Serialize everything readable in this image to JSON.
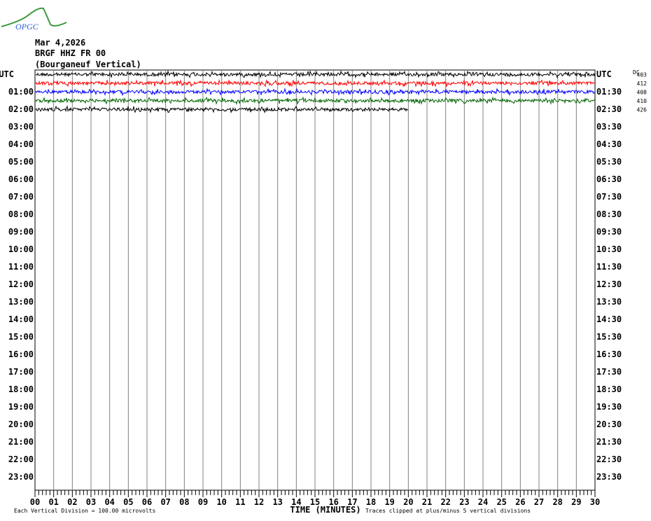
{
  "logo": {
    "text": "OPGC"
  },
  "header": {
    "date": "Mar 4,2026",
    "station": "BRGF HHZ FR 00",
    "location": "(Bourganeuf Vertical)"
  },
  "footer": {
    "scale": "Each Vertical Division =  100.00 microvolts",
    "clip": "Traces clipped at plus/minus 5 vertical divisions"
  },
  "chart_data": {
    "type": "line",
    "xlabel": "TIME (MINUTES)",
    "x_ticks": [
      "00",
      "01",
      "02",
      "03",
      "04",
      "05",
      "06",
      "07",
      "08",
      "09",
      "10",
      "11",
      "12",
      "13",
      "14",
      "15",
      "16",
      "17",
      "18",
      "19",
      "20",
      "21",
      "22",
      "23",
      "24",
      "25",
      "26",
      "27",
      "28",
      "29",
      "30"
    ],
    "xlim": [
      0,
      30
    ],
    "left_labels": [
      "UTC",
      "01:00",
      "02:00",
      "03:00",
      "04:00",
      "05:00",
      "06:00",
      "07:00",
      "08:00",
      "09:00",
      "10:00",
      "11:00",
      "12:00",
      "13:00",
      "14:00",
      "15:00",
      "16:00",
      "17:00",
      "18:00",
      "19:00",
      "20:00",
      "21:00",
      "22:00",
      "23:00"
    ],
    "right_labels": [
      "UTC",
      "01:30",
      "02:30",
      "03:30",
      "04:30",
      "05:30",
      "06:30",
      "07:30",
      "08:30",
      "09:30",
      "10:30",
      "11:30",
      "12:30",
      "13:30",
      "14:30",
      "15:30",
      "16:30",
      "17:30",
      "18:30",
      "19:30",
      "20:30",
      "21:30",
      "22:30",
      "23:30"
    ],
    "dc_label": "DC",
    "rows_total": 48,
    "colors": [
      "#000000",
      "#ff0000",
      "#0000ff",
      "#006400"
    ],
    "traces": [
      {
        "row": 0,
        "color": "#000000",
        "dc": "403",
        "end_minute": 30
      },
      {
        "row": 1,
        "color": "#ff0000",
        "dc": "412",
        "end_minute": 30
      },
      {
        "row": 2,
        "color": "#0000ff",
        "dc": "408",
        "end_minute": 30
      },
      {
        "row": 3,
        "color": "#006400",
        "dc": "410",
        "end_minute": 30
      },
      {
        "row": 4,
        "color": "#000000",
        "dc": "426",
        "end_minute": 20
      }
    ],
    "grid": true
  }
}
